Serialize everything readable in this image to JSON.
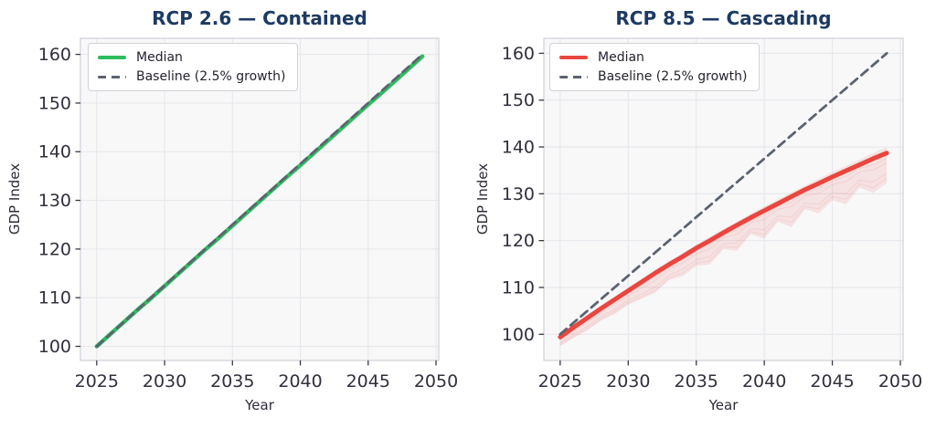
{
  "figure": {
    "background": "#ffffff",
    "plot_background": "#f8f8f9",
    "grid_color": "#e7e7ec",
    "title_color": "#1d3a63",
    "tick_color": "#30303e"
  },
  "chart_data": [
    {
      "type": "line",
      "title": "RCP 2.6 — Contained",
      "xlabel": "Year",
      "ylabel": "GDP Index",
      "x_ticks": [
        2025,
        2030,
        2035,
        2040,
        2045,
        2050
      ],
      "y_ticks": [
        100,
        110,
        120,
        130,
        140,
        150,
        160
      ],
      "xlim": [
        2023.8,
        2050.2
      ],
      "ylim": [
        97.1,
        163.3
      ],
      "grid": true,
      "legend_position": "upper left",
      "years": [
        2025,
        2026,
        2027,
        2028,
        2029,
        2030,
        2031,
        2032,
        2033,
        2034,
        2035,
        2036,
        2037,
        2038,
        2039,
        2040,
        2041,
        2042,
        2043,
        2044,
        2045,
        2046,
        2047,
        2048,
        2049
      ],
      "series": [
        {
          "name": "Median",
          "color": "#2dbd5f",
          "style": "solid",
          "width": 4.5,
          "values": [
            100.0,
            102.5,
            105.0,
            107.5,
            109.9,
            112.4,
            114.9,
            117.4,
            119.9,
            122.3,
            124.8,
            127.3,
            129.8,
            132.3,
            134.8,
            137.2,
            139.7,
            142.2,
            144.7,
            147.2,
            149.7,
            152.1,
            154.6,
            157.1,
            159.6
          ]
        },
        {
          "name": "Baseline (2.5% growth)",
          "color": "#5b6370",
          "style": "dashed",
          "width": 2.8,
          "values": [
            100.0,
            102.5,
            105.0,
            107.5,
            110.0,
            112.5,
            115.0,
            117.5,
            120.0,
            122.5,
            125.0,
            127.5,
            130.0,
            132.5,
            135.0,
            137.5,
            140.0,
            142.5,
            145.0,
            147.5,
            150.0,
            152.5,
            155.0,
            157.5,
            160.0
          ]
        }
      ]
    },
    {
      "type": "line",
      "title": "RCP 8.5 — Cascading",
      "xlabel": "Year",
      "ylabel": "GDP Index",
      "x_ticks": [
        2025,
        2030,
        2035,
        2040,
        2045,
        2050
      ],
      "y_ticks": [
        100,
        110,
        120,
        130,
        140,
        150,
        160
      ],
      "xlim": [
        2023.8,
        2050.2
      ],
      "ylim": [
        94.4,
        163.2
      ],
      "grid": true,
      "legend_position": "upper left",
      "years": [
        2025,
        2026,
        2027,
        2028,
        2029,
        2030,
        2031,
        2032,
        2033,
        2034,
        2035,
        2036,
        2037,
        2038,
        2039,
        2040,
        2041,
        2042,
        2043,
        2044,
        2045,
        2046,
        2047,
        2048,
        2049
      ],
      "band": {
        "color": "#e9463f",
        "opacity": 0.12,
        "upper": [
          99.8,
          101.9,
          104.0,
          106.0,
          108.0,
          109.9,
          111.8,
          113.7,
          115.6,
          117.3,
          119.1,
          120.8,
          122.5,
          124.1,
          125.7,
          127.3,
          128.8,
          130.3,
          131.8,
          133.2,
          134.6,
          136.0,
          137.3,
          138.7,
          140.0
        ],
        "lower": [
          97.5,
          99.2,
          100.8,
          102.9,
          104.3,
          106.3,
          107.6,
          108.9,
          111.6,
          112.4,
          114.6,
          114.9,
          118.2,
          117.8,
          121.4,
          120.4,
          124.0,
          122.9,
          126.7,
          125.8,
          128.6,
          127.7,
          131.3,
          130.2,
          132.3
        ]
      },
      "ensemble": {
        "color": "#e9463f",
        "opacity": 0.09,
        "trajectories": [
          [
            98.9,
            100.7,
            102.6,
            104.6,
            106.4,
            108.2,
            109.9,
            111.5,
            113.8,
            115.2,
            117.1,
            118.3,
            120.6,
            121.4,
            123.8,
            124.5,
            126.7,
            127.3,
            129.6,
            130.1,
            132.0,
            132.6,
            134.7,
            135.1,
            136.6
          ],
          [
            98.2,
            100.0,
            101.7,
            103.8,
            105.3,
            107.2,
            108.6,
            110.1,
            112.6,
            113.9,
            115.9,
            116.6,
            119.3,
            119.5,
            122.5,
            122.3,
            125.3,
            125.0,
            128.0,
            127.8,
            130.2,
            130.0,
            132.9,
            132.5,
            134.4
          ],
          [
            97.8,
            99.6,
            101.2,
            103.3,
            104.8,
            106.7,
            108.0,
            109.4,
            112.0,
            113.1,
            115.2,
            115.7,
            118.7,
            118.6,
            121.9,
            121.3,
            124.6,
            123.9,
            127.3,
            126.8,
            129.4,
            128.8,
            132.1,
            131.3,
            133.3
          ],
          [
            99.1,
            101.1,
            103.0,
            105.0,
            106.9,
            108.7,
            110.5,
            112.2,
            114.3,
            115.9,
            117.7,
            119.1,
            121.1,
            122.3,
            124.3,
            125.4,
            127.3,
            128.3,
            130.2,
            131.1,
            132.7,
            133.7,
            135.4,
            136.2,
            137.5
          ]
        ]
      },
      "series": [
        {
          "name": "Median",
          "color": "#e9463f",
          "style": "solid",
          "width": 5,
          "values": [
            99.4,
            101.5,
            103.5,
            105.5,
            107.4,
            109.3,
            111.2,
            113.1,
            114.9,
            116.6,
            118.4,
            120.0,
            121.7,
            123.3,
            124.9,
            126.4,
            127.9,
            129.4,
            130.9,
            132.2,
            133.6,
            134.9,
            136.2,
            137.5,
            138.7
          ]
        },
        {
          "name": "Baseline (2.5% growth)",
          "color": "#5b6370",
          "style": "dashed",
          "width": 2.8,
          "values": [
            100.0,
            102.5,
            105.0,
            107.5,
            110.0,
            112.5,
            115.0,
            117.5,
            120.0,
            122.5,
            125.0,
            127.5,
            130.0,
            132.5,
            135.0,
            137.5,
            140.0,
            142.5,
            145.0,
            147.5,
            150.0,
            152.5,
            155.0,
            157.5,
            160.0
          ]
        }
      ]
    }
  ]
}
